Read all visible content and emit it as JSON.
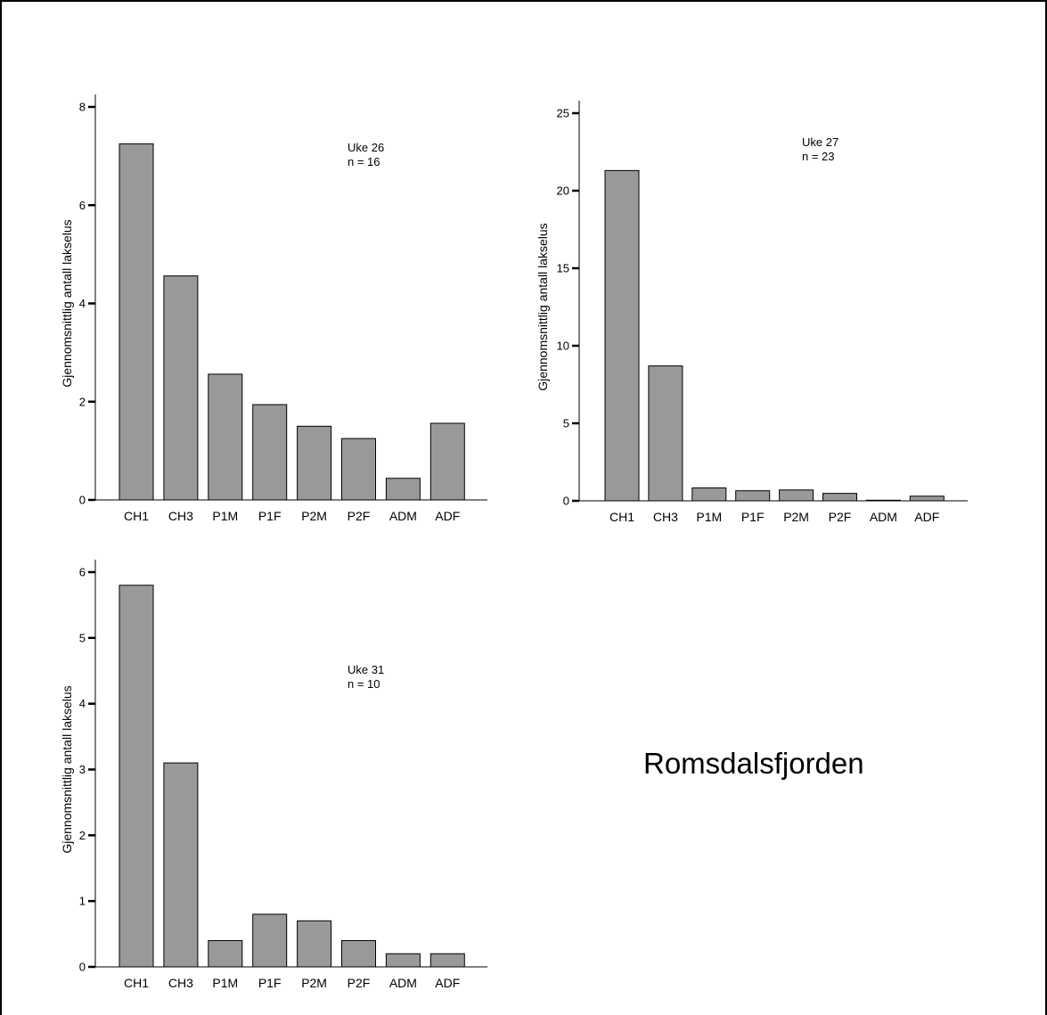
{
  "page_title": "Romsdalsfjorden",
  "colors": {
    "bar_fill": "#999999",
    "bar_stroke": "#000000",
    "axis": "#000000"
  },
  "chart_data": [
    {
      "type": "bar",
      "id": "uke26",
      "annotation": [
        "Uke 26",
        "n = 16"
      ],
      "ylabel": "Gjennomsnittlig antall lakselus",
      "xlabel": "",
      "categories": [
        "CH1",
        "CH3",
        "P1M",
        "P1F",
        "P2M",
        "P2F",
        "ADM",
        "ADF"
      ],
      "values": [
        7.25,
        4.56,
        2.56,
        1.94,
        1.5,
        1.25,
        0.44,
        1.56
      ],
      "ylim": [
        0,
        8
      ],
      "yticks": [
        0,
        2,
        4,
        6,
        8
      ],
      "grid": false
    },
    {
      "type": "bar",
      "id": "uke27",
      "annotation": [
        "Uke 27",
        "n = 23"
      ],
      "ylabel": "Gjennomsnittlig antall lakselus",
      "xlabel": "",
      "categories": [
        "CH1",
        "CH3",
        "P1M",
        "P1F",
        "P2M",
        "P2F",
        "ADM",
        "ADF"
      ],
      "values": [
        21.3,
        8.7,
        0.83,
        0.65,
        0.7,
        0.48,
        0.04,
        0.3
      ],
      "ylim": [
        0,
        25
      ],
      "yticks": [
        0,
        5,
        10,
        15,
        20,
        25
      ],
      "grid": false
    },
    {
      "type": "bar",
      "id": "uke31",
      "annotation": [
        "Uke 31",
        "n = 10"
      ],
      "ylabel": "Gjennomsnittlig antall lakselus",
      "xlabel": "",
      "categories": [
        "CH1",
        "CH3",
        "P1M",
        "P1F",
        "P2M",
        "P2F",
        "ADM",
        "ADF"
      ],
      "values": [
        5.8,
        3.1,
        0.4,
        0.8,
        0.7,
        0.4,
        0.2,
        0.2
      ],
      "ylim": [
        0,
        6
      ],
      "yticks": [
        0,
        1,
        2,
        3,
        4,
        5,
        6
      ],
      "grid": false
    }
  ]
}
